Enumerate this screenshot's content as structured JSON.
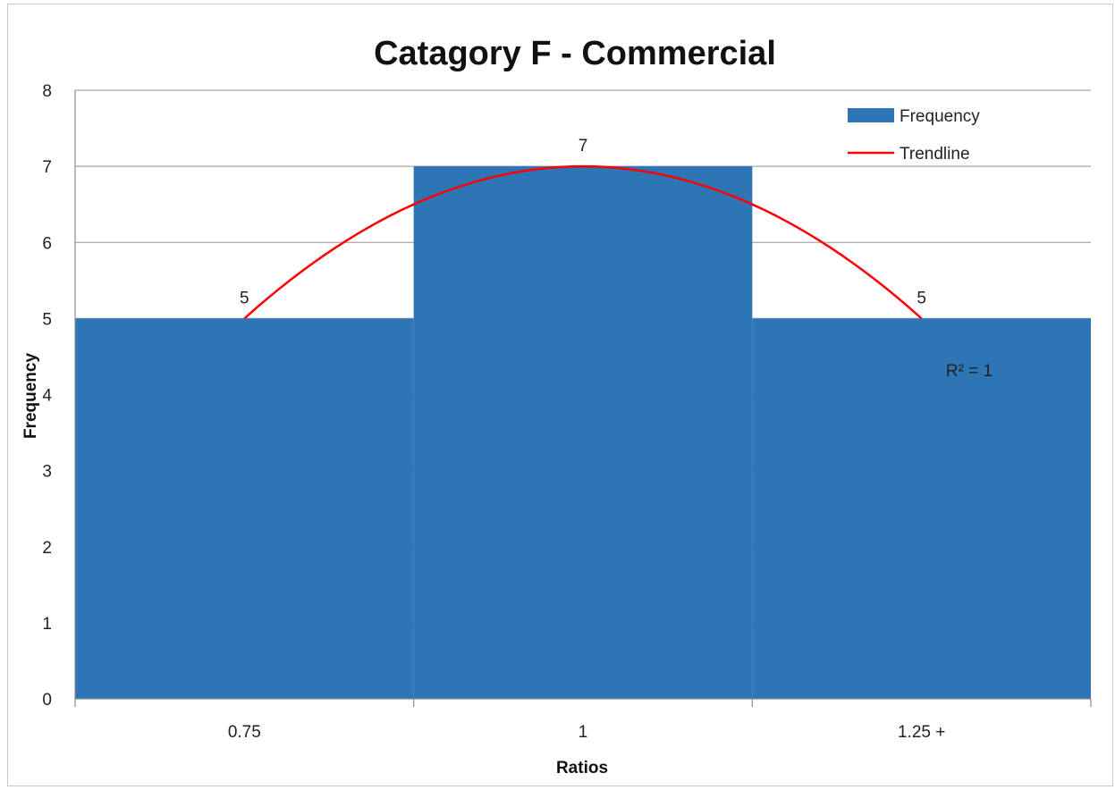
{
  "chart_data": {
    "type": "bar",
    "title": "Catagory F - Commercial",
    "xlabel": "Ratios",
    "ylabel": "Frequency",
    "categories": [
      "0.75",
      "1",
      "1.25 +"
    ],
    "series": [
      {
        "name": "Frequency",
        "values": [
          5,
          7,
          5
        ],
        "color": "#2e75b6"
      }
    ],
    "data_labels": [
      "5",
      "7",
      "5"
    ],
    "trendline": {
      "name": "Trendline",
      "type": "polynomial",
      "color": "#ff0000",
      "r_squared_label": "R² = 1"
    },
    "ylim": [
      0,
      8
    ],
    "yticks": [
      0,
      1,
      2,
      3,
      4,
      5,
      6,
      7,
      8
    ],
    "grid": true,
    "legend": "top-right"
  }
}
